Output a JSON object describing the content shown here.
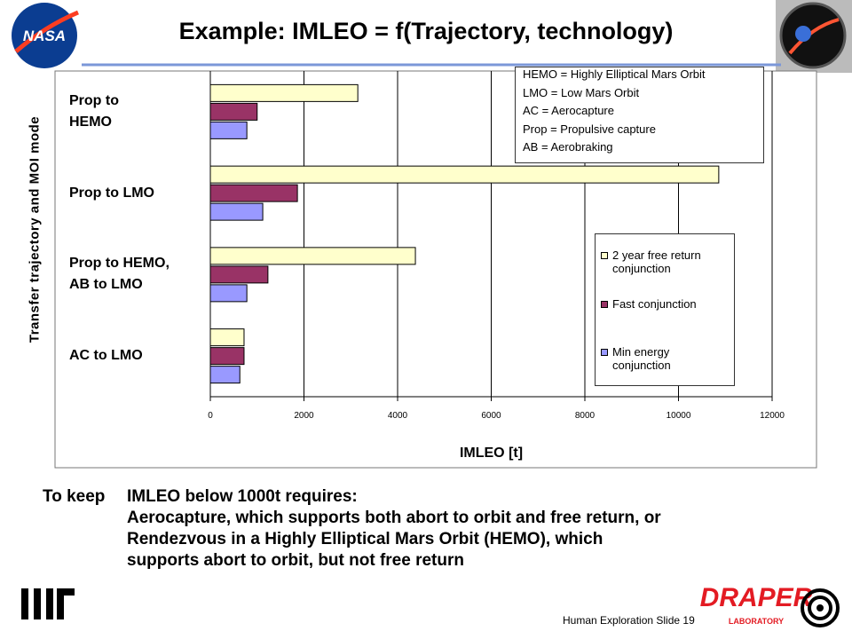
{
  "slide": {
    "title": "Example: IMLEO = f(Trajectory, technology)",
    "body_lead": "To keep",
    "body_lines": [
      "IMLEO below 1000t requires:",
      "Aerocapture, which supports both abort to orbit and free return, or",
      "Rendezvous in a Highly Elliptical Mars Orbit (HEMO), which",
      "supports abort to orbit, but not free return"
    ],
    "footer": "Human Exploration Slide 19",
    "logos": {
      "nasa": "NASA",
      "draper": "DRAPER",
      "draper_sub": "LABORATORY"
    }
  },
  "chart_data": {
    "type": "hbar",
    "categories": [
      "Prop to\nHEMO",
      "Prop to LMO",
      "Prop to HEMO,\nAB to LMO",
      "AC to LMO"
    ],
    "series": [
      {
        "name": "2 year free return\nconjunction",
        "color": "#ffffcc",
        "values": [
          3150,
          10860,
          4380,
          720
        ]
      },
      {
        "name": "Fast conjunction",
        "color": "#993366",
        "values": [
          1000,
          1860,
          1230,
          720
        ]
      },
      {
        "name": "Min energy\nconjunction",
        "color": "#9999ff",
        "values": [
          780,
          1120,
          780,
          630
        ]
      }
    ],
    "xlim": [
      0,
      12000
    ],
    "xticks": [
      0,
      2000,
      4000,
      6000,
      8000,
      10000,
      12000
    ],
    "xlabel": "IMLEO [t]",
    "ylabel": "Transfer trajectory and MOI mode",
    "grid": true,
    "notes": [
      "HEMO = Highly Elliptical Mars Orbit",
      "LMO = Low Mars Orbit",
      "AC = Aerocapture",
      "Prop = Propulsive capture",
      "AB = Aerobraking"
    ]
  }
}
